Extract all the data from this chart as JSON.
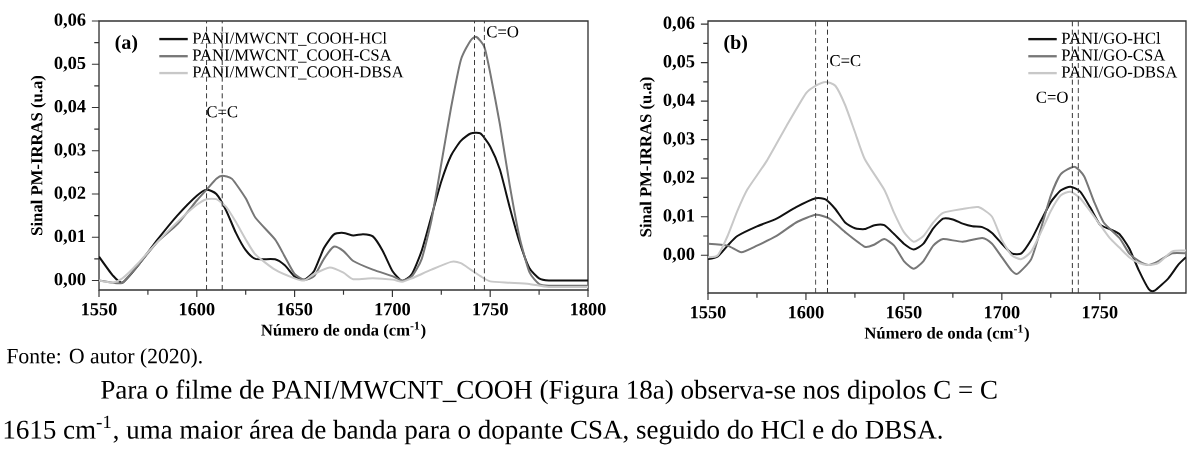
{
  "chart_data": [
    {
      "type": "line",
      "xlabel": "Número de onda (cm$^{-1}$)",
      "ylabel": "Sinal PM-IRRAS (u.a)",
      "xlim": [
        1550,
        1800
      ],
      "ylim": [
        -0.0022,
        0.06
      ],
      "xticks": [
        1550,
        1600,
        1650,
        1700,
        1750,
        1800
      ],
      "yticks": [
        {
          "value": 0.0,
          "label": "0,00"
        },
        {
          "value": 0.01,
          "label": "0,01"
        },
        {
          "value": 0.02,
          "label": "0,02"
        },
        {
          "value": 0.03,
          "label": "0,03"
        },
        {
          "value": 0.04,
          "label": "0,04"
        },
        {
          "value": 0.05,
          "label": "0,05"
        },
        {
          "value": 0.06,
          "label": "0,06"
        }
      ],
      "legend": "top left",
      "ref_lines": [
        {
          "axis": "x",
          "value": 1605,
          "color": "#333333",
          "line_style": "dashed"
        },
        {
          "axis": "x",
          "value": 1613,
          "color": "#333333",
          "line_style": "dashed"
        },
        {
          "axis": "x",
          "value": 1742,
          "color": "#333333",
          "line_style": "dashed"
        },
        {
          "axis": "x",
          "value": 1747,
          "color": "#333333",
          "line_style": "dashed"
        }
      ],
      "annotations": [
        "(a)",
        {
          "text": "C=C",
          "x": 1613,
          "y": 0.039
        },
        {
          "text": "C=O",
          "x": 1747,
          "y": 0.0575
        },
        "Fonte: O autor (2020).",
        "Para o filme de PANI/MWCNT_COOH (Figura 18a) observa-se nos dipolos  C = C",
        "1615 cm$^{-1}$, uma maior área de banda para o dopante CSA, seguido do HCl e do DBSA."
      ],
      "series": [
        {
          "name": "PANI/MWCNT_COOH-HCl",
          "color": "#111111",
          "x": [
            1550,
            1557,
            1562,
            1570,
            1580,
            1590,
            1600,
            1605,
            1610,
            1615,
            1620,
            1625,
            1630,
            1640,
            1645,
            1650,
            1655,
            1660,
            1665,
            1670,
            1675,
            1680,
            1685,
            1690,
            1695,
            1700,
            1705,
            1710,
            1715,
            1720,
            1725,
            1730,
            1735,
            1740,
            1745,
            1750,
            1755,
            1760,
            1765,
            1770,
            1775,
            1780,
            1790,
            1800
          ],
          "values": [
            0.0055,
            0.0012,
            -0.0005,
            0.0035,
            0.0095,
            0.015,
            0.0196,
            0.021,
            0.02,
            0.0162,
            0.011,
            0.007,
            0.005,
            0.0049,
            0.0035,
            0.0009,
            0.0002,
            0.0022,
            0.0075,
            0.0106,
            0.011,
            0.0104,
            0.0107,
            0.0102,
            0.0069,
            0.0022,
            -0.0001,
            0.0015,
            0.0069,
            0.0149,
            0.0229,
            0.0289,
            0.0323,
            0.034,
            0.034,
            0.031,
            0.0256,
            0.0169,
            0.0089,
            0.0029,
            0.0005,
            0.0,
            0.0,
            0.0
          ]
        },
        {
          "name": "PANI/MWCNT_COOH-CSA",
          "color": "#777777",
          "x": [
            1550,
            1557,
            1562,
            1570,
            1580,
            1590,
            1600,
            1605,
            1610,
            1613,
            1618,
            1625,
            1630,
            1640,
            1645,
            1650,
            1655,
            1660,
            1665,
            1670,
            1675,
            1680,
            1690,
            1700,
            1705,
            1710,
            1715,
            1720,
            1725,
            1730,
            1735,
            1740,
            1743,
            1747,
            1750,
            1755,
            1760,
            1765,
            1770,
            1775,
            1780,
            1800
          ],
          "values": [
            0.0,
            -0.0005,
            -0.0005,
            0.0035,
            0.009,
            0.013,
            0.0185,
            0.021,
            0.0235,
            0.0242,
            0.0235,
            0.019,
            0.0145,
            0.0095,
            0.0055,
            0.0015,
            0.0002,
            0.001,
            0.005,
            0.0078,
            0.0068,
            0.0045,
            0.0025,
            0.001,
            0.0,
            0.001,
            0.005,
            0.014,
            0.027,
            0.04,
            0.051,
            0.0555,
            0.0563,
            0.054,
            0.048,
            0.036,
            0.022,
            0.01,
            0.002,
            -0.0008,
            -0.0012,
            -0.0012
          ]
        },
        {
          "name": "PANI/MWCNT_COOH-DBSA",
          "color": "#c8c8c8",
          "x": [
            1550,
            1557,
            1562,
            1570,
            1580,
            1590,
            1600,
            1605,
            1610,
            1615,
            1620,
            1625,
            1630,
            1640,
            1650,
            1655,
            1660,
            1668,
            1675,
            1680,
            1690,
            1700,
            1705,
            1710,
            1720,
            1730,
            1735,
            1740,
            1745,
            1750,
            1760,
            1770,
            1780,
            1800
          ],
          "values": [
            0.0,
            -0.0005,
            0.0005,
            0.004,
            0.009,
            0.0135,
            0.0175,
            0.0188,
            0.0188,
            0.017,
            0.0135,
            0.0095,
            0.006,
            0.0025,
            0.0005,
            0.0,
            0.0015,
            0.003,
            0.0018,
            0.0003,
            0.0005,
            0.0002,
            -0.0003,
            0.0005,
            0.0025,
            0.0043,
            0.004,
            0.0025,
            0.001,
            -0.0002,
            -0.0005,
            -0.0008,
            -0.0015,
            -0.0015
          ]
        }
      ]
    },
    {
      "type": "line",
      "xlabel": "Número de onda (cm$^{-1}$)",
      "ylabel": "Sinal PM-IRRAS (u.a)",
      "xlim": [
        1550,
        1794
      ],
      "ylim": [
        -0.0098,
        0.0608
      ],
      "xticks": [
        1550,
        1600,
        1650,
        1700,
        1750
      ],
      "yticks": [
        {
          "value": 0.0,
          "label": "0,00"
        },
        {
          "value": 0.01,
          "label": "0,01"
        },
        {
          "value": 0.02,
          "label": "0,02"
        },
        {
          "value": 0.03,
          "label": "0,03"
        },
        {
          "value": 0.04,
          "label": "0,04"
        },
        {
          "value": 0.05,
          "label": "0,05"
        },
        {
          "value": 0.06,
          "label": "0,06"
        }
      ],
      "legend": "top right",
      "ref_lines": [
        {
          "axis": "x",
          "value": 1605,
          "color": "#333333",
          "line_style": "dashed"
        },
        {
          "axis": "x",
          "value": 1611,
          "color": "#333333",
          "line_style": "dashed"
        },
        {
          "axis": "x",
          "value": 1736,
          "color": "#333333",
          "line_style": "dashed"
        },
        {
          "axis": "x",
          "value": 1739,
          "color": "#333333",
          "line_style": "dashed"
        }
      ],
      "annotations": [
        "(b)",
        {
          "text": "C=C",
          "x": 1611,
          "y": 0.0505
        },
        {
          "text": "C=O",
          "x": 1735,
          "y": 0.041
        }
      ],
      "series": [
        {
          "name": "PANI/GO-HCl",
          "color": "#111111",
          "x": [
            1550,
            1555,
            1560,
            1565,
            1575,
            1585,
            1595,
            1605,
            1610,
            1615,
            1620,
            1625,
            1630,
            1635,
            1640,
            1645,
            1650,
            1655,
            1660,
            1665,
            1670,
            1675,
            1680,
            1685,
            1690,
            1695,
            1700,
            1705,
            1710,
            1715,
            1720,
            1725,
            1730,
            1735,
            1740,
            1745,
            1750,
            1755,
            1760,
            1765,
            1770,
            1775,
            1778,
            1785,
            1790,
            1794
          ],
          "values": [
            -0.001,
            -0.0003,
            0.0025,
            0.005,
            0.0075,
            0.0095,
            0.0125,
            0.0148,
            0.0145,
            0.012,
            0.0085,
            0.007,
            0.0068,
            0.0078,
            0.0078,
            0.0055,
            0.003,
            0.0015,
            0.003,
            0.007,
            0.0095,
            0.0093,
            0.0082,
            0.0075,
            0.0073,
            0.0058,
            0.003,
            0.0005,
            0.0005,
            0.004,
            0.009,
            0.0138,
            0.0168,
            0.0178,
            0.0165,
            0.0125,
            0.008,
            0.0068,
            0.0055,
            0.0018,
            -0.004,
            -0.0088,
            -0.0092,
            -0.006,
            -0.0025,
            -0.0005
          ]
        },
        {
          "name": "PANI/GO-CSA",
          "color": "#777777",
          "x": [
            1550,
            1560,
            1567,
            1575,
            1585,
            1595,
            1605,
            1612,
            1620,
            1630,
            1635,
            1640,
            1645,
            1650,
            1655,
            1660,
            1665,
            1670,
            1680,
            1690,
            1695,
            1700,
            1705,
            1708,
            1715,
            1720,
            1725,
            1730,
            1737,
            1742,
            1747,
            1752,
            1760,
            1765,
            1770,
            1775,
            1780,
            1787,
            1794
          ],
          "values": [
            0.003,
            0.0025,
            0.0008,
            0.0025,
            0.005,
            0.0085,
            0.0105,
            0.0095,
            0.006,
            0.0022,
            0.0028,
            0.0042,
            0.0025,
            -0.0015,
            -0.0035,
            -0.0015,
            0.0025,
            0.0042,
            0.0035,
            0.0045,
            0.003,
            -0.0005,
            -0.004,
            -0.0048,
            -0.001,
            0.007,
            0.0155,
            0.021,
            0.023,
            0.0205,
            0.014,
            0.0085,
            0.0045,
            0.0005,
            -0.0015,
            -0.0025,
            -0.0015,
            0.0005,
            0.0005
          ]
        },
        {
          "name": "PANI/GO-DBSA",
          "color": "#c8c8c8",
          "x": [
            1550,
            1555,
            1560,
            1565,
            1570,
            1580,
            1590,
            1600,
            1605,
            1610,
            1615,
            1620,
            1625,
            1630,
            1640,
            1645,
            1650,
            1655,
            1660,
            1665,
            1670,
            1680,
            1688,
            1695,
            1700,
            1705,
            1710,
            1715,
            1720,
            1725,
            1730,
            1735,
            1740,
            1745,
            1750,
            1755,
            1760,
            1765,
            1770,
            1775,
            1780,
            1787,
            1794
          ],
          "values": [
            -0.0005,
            0.0,
            0.005,
            0.0115,
            0.017,
            0.0245,
            0.0335,
            0.042,
            0.044,
            0.045,
            0.044,
            0.039,
            0.032,
            0.025,
            0.017,
            0.011,
            0.006,
            0.0035,
            0.005,
            0.0085,
            0.011,
            0.012,
            0.0125,
            0.01,
            0.004,
            0.0,
            -0.001,
            0.001,
            0.006,
            0.0115,
            0.0155,
            0.0165,
            0.0148,
            0.0115,
            0.008,
            0.0045,
            0.002,
            -0.0005,
            -0.002,
            -0.0025,
            -0.002,
            0.001,
            0.0012
          ]
        }
      ]
    }
  ]
}
